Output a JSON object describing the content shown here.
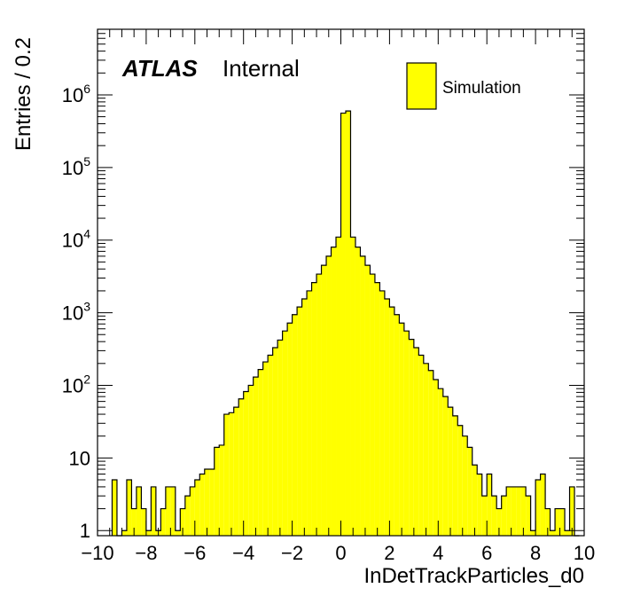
{
  "chart_data": {
    "type": "bar",
    "xlabel": "InDetTrackParticles_d0",
    "ylabel": "Entries / 0.2",
    "xlim": [
      -10,
      10
    ],
    "ylim": [
      0.85,
      8000000
    ],
    "y_scale": "log",
    "bin_width": 0.2,
    "fill_color": "#ffff00",
    "line_color": "#000000",
    "grid": false,
    "x_ticks": [
      "−10",
      "−8",
      "−6",
      "−4",
      "−2",
      "0",
      "2",
      "4",
      "6",
      "8",
      "10"
    ],
    "y_ticks": [
      {
        "base": "1",
        "exp": ""
      },
      {
        "base": "10",
        "exp": ""
      },
      {
        "base": "10",
        "exp": "2"
      },
      {
        "base": "10",
        "exp": "3"
      },
      {
        "base": "10",
        "exp": "4"
      },
      {
        "base": "10",
        "exp": "5"
      },
      {
        "base": "10",
        "exp": "6"
      }
    ],
    "atlas_label": "ATLAS",
    "atlas_sublabel": "Internal",
    "legend": [
      {
        "name": "Simulation",
        "color": "#ffff00"
      }
    ],
    "bins": [
      {
        "x": -9.4,
        "y": 5
      },
      {
        "x": -9.2,
        "y": 0
      },
      {
        "x": -9.0,
        "y": 1
      },
      {
        "x": -8.8,
        "y": 5
      },
      {
        "x": -8.6,
        "y": 2
      },
      {
        "x": -8.4,
        "y": 4
      },
      {
        "x": -8.2,
        "y": 2
      },
      {
        "x": -8.0,
        "y": 1
      },
      {
        "x": -7.8,
        "y": 4
      },
      {
        "x": -7.6,
        "y": 1
      },
      {
        "x": -7.4,
        "y": 2
      },
      {
        "x": -7.2,
        "y": 4
      },
      {
        "x": -7.0,
        "y": 4
      },
      {
        "x": -6.8,
        "y": 1
      },
      {
        "x": -6.6,
        "y": 2
      },
      {
        "x": -6.4,
        "y": 3
      },
      {
        "x": -6.2,
        "y": 4
      },
      {
        "x": -6.0,
        "y": 5
      },
      {
        "x": -5.8,
        "y": 6
      },
      {
        "x": -5.6,
        "y": 7
      },
      {
        "x": -5.4,
        "y": 7
      },
      {
        "x": -5.2,
        "y": 14
      },
      {
        "x": -5.0,
        "y": 15
      },
      {
        "x": -4.8,
        "y": 40
      },
      {
        "x": -4.6,
        "y": 42
      },
      {
        "x": -4.4,
        "y": 50
      },
      {
        "x": -4.2,
        "y": 65
      },
      {
        "x": -4.0,
        "y": 82
      },
      {
        "x": -3.8,
        "y": 100
      },
      {
        "x": -3.6,
        "y": 130
      },
      {
        "x": -3.4,
        "y": 165
      },
      {
        "x": -3.2,
        "y": 210
      },
      {
        "x": -3.0,
        "y": 260
      },
      {
        "x": -2.8,
        "y": 330
      },
      {
        "x": -2.6,
        "y": 420
      },
      {
        "x": -2.4,
        "y": 560
      },
      {
        "x": -2.2,
        "y": 720
      },
      {
        "x": -2.0,
        "y": 940
      },
      {
        "x": -1.8,
        "y": 1200
      },
      {
        "x": -1.6,
        "y": 1550
      },
      {
        "x": -1.4,
        "y": 2000
      },
      {
        "x": -1.2,
        "y": 2600
      },
      {
        "x": -1.0,
        "y": 3400
      },
      {
        "x": -0.8,
        "y": 4500
      },
      {
        "x": -0.6,
        "y": 6000
      },
      {
        "x": -0.4,
        "y": 8000
      },
      {
        "x": -0.2,
        "y": 11000
      },
      {
        "x": 0.0,
        "y": 560000
      },
      {
        "x": 0.2,
        "y": 600000
      },
      {
        "x": 0.4,
        "y": 11000
      },
      {
        "x": 0.6,
        "y": 8000
      },
      {
        "x": 0.8,
        "y": 6000
      },
      {
        "x": 1.0,
        "y": 4500
      },
      {
        "x": 1.2,
        "y": 3400
      },
      {
        "x": 1.4,
        "y": 2600
      },
      {
        "x": 1.6,
        "y": 2000
      },
      {
        "x": 1.8,
        "y": 1550
      },
      {
        "x": 2.0,
        "y": 1200
      },
      {
        "x": 2.2,
        "y": 940
      },
      {
        "x": 2.4,
        "y": 720
      },
      {
        "x": 2.6,
        "y": 560
      },
      {
        "x": 2.8,
        "y": 430
      },
      {
        "x": 3.0,
        "y": 330
      },
      {
        "x": 3.2,
        "y": 260
      },
      {
        "x": 3.4,
        "y": 200
      },
      {
        "x": 3.6,
        "y": 160
      },
      {
        "x": 3.8,
        "y": 120
      },
      {
        "x": 4.0,
        "y": 90
      },
      {
        "x": 4.2,
        "y": 70
      },
      {
        "x": 4.4,
        "y": 50
      },
      {
        "x": 4.6,
        "y": 38
      },
      {
        "x": 4.8,
        "y": 28
      },
      {
        "x": 5.0,
        "y": 20
      },
      {
        "x": 5.2,
        "y": 14
      },
      {
        "x": 5.4,
        "y": 8
      },
      {
        "x": 5.6,
        "y": 6
      },
      {
        "x": 5.8,
        "y": 3
      },
      {
        "x": 6.0,
        "y": 6
      },
      {
        "x": 6.2,
        "y": 3
      },
      {
        "x": 6.4,
        "y": 2
      },
      {
        "x": 6.6,
        "y": 3
      },
      {
        "x": 6.8,
        "y": 4
      },
      {
        "x": 7.0,
        "y": 4
      },
      {
        "x": 7.2,
        "y": 4
      },
      {
        "x": 7.4,
        "y": 4
      },
      {
        "x": 7.6,
        "y": 3
      },
      {
        "x": 7.8,
        "y": 1
      },
      {
        "x": 8.0,
        "y": 5
      },
      {
        "x": 8.2,
        "y": 6
      },
      {
        "x": 8.4,
        "y": 2
      },
      {
        "x": 8.6,
        "y": 1
      },
      {
        "x": 8.8,
        "y": 2
      },
      {
        "x": 9.0,
        "y": 2
      },
      {
        "x": 9.2,
        "y": 1
      },
      {
        "x": 9.4,
        "y": 4
      },
      {
        "x": 9.6,
        "y": 0
      }
    ]
  }
}
